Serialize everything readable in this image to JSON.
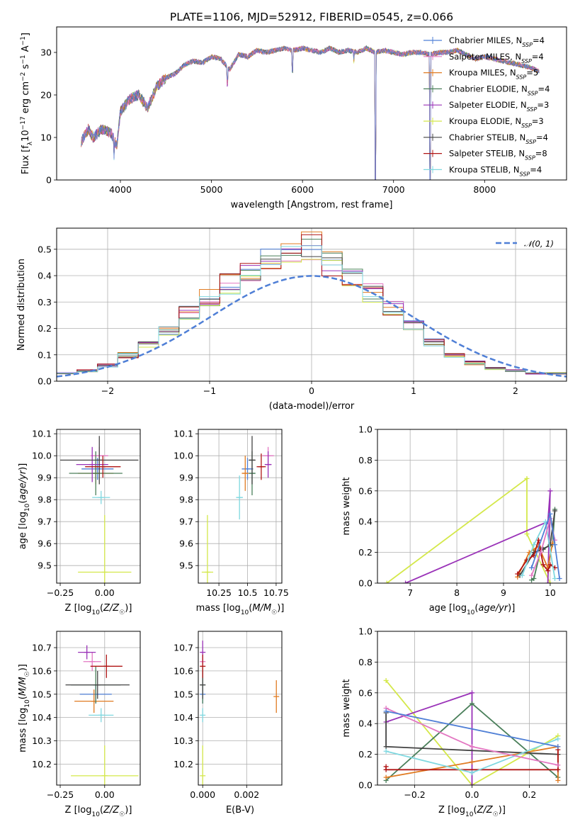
{
  "figure_title": "PLATE=1106, MJD=52912, FIBERID=0545, z=0.066",
  "colors": {
    "chabrier_miles": "#4f7fd6",
    "salpeter_miles": "#e377c2",
    "kroupa_miles": "#e07b22",
    "chabrier_elodie": "#4a7f5a",
    "salpeter_elodie": "#9a32b8",
    "kroupa_elodie": "#d4e84a",
    "chabrier_stelib": "#444444",
    "salpeter_stelib": "#b01515",
    "kroupa_stelib": "#7fd8e0"
  },
  "chart_data": [
    {
      "id": "spectrum",
      "type": "line",
      "xlabel": "wavelength [Angstrom, rest frame]",
      "ylabel": "Flux [f_λ 10^-17 erg cm^-2 s^-1 A^-1]",
      "xlim": [
        3300,
        8900
      ],
      "ylim": [
        0,
        36
      ],
      "xticks": [
        4000,
        5000,
        6000,
        7000,
        8000
      ],
      "yticks": [
        0,
        10,
        20,
        30
      ],
      "grid": false,
      "legend_position": "right",
      "legend": [
        {
          "label": "Chabrier MILES, N_SSP=4",
          "color": "#4f7fd6"
        },
        {
          "label": "Salpeter MILES, N_SSP=4",
          "color": "#e377c2"
        },
        {
          "label": "Kroupa MILES, N_SSP=5",
          "color": "#e07b22"
        },
        {
          "label": "Chabrier ELODIE, N_SSP=4",
          "color": "#4a7f5a"
        },
        {
          "label": "Salpeter ELODIE, N_SSP=3",
          "color": "#9a32b8"
        },
        {
          "label": "Kroupa ELODIE, N_SSP=3",
          "color": "#d4e84a"
        },
        {
          "label": "Chabrier STELIB, N_SSP=4",
          "color": "#444444"
        },
        {
          "label": "Salpeter STELIB, N_SSP=8",
          "color": "#b01515"
        },
        {
          "label": "Kroupa STELIB, N_SSP=4",
          "color": "#7fd8e0"
        }
      ],
      "spectrum_wavelength": [
        3570,
        3650,
        3700,
        3800,
        3900,
        3960,
        4000,
        4100,
        4200,
        4300,
        4400,
        4500,
        4600,
        4700,
        4800,
        4900,
        5000,
        5100,
        5200,
        5300,
        5400,
        5500,
        5600,
        5700,
        5800,
        5900,
        6000,
        6100,
        6200,
        6300,
        6400,
        6500,
        6600,
        6700,
        6800,
        6900,
        7000,
        7100,
        7200,
        7300,
        7400,
        7500,
        7600,
        7700,
        7800,
        7900,
        8000,
        8100,
        8200,
        8300,
        8400,
        8500,
        8600
      ],
      "spectrum_flux": [
        9,
        12,
        10,
        12,
        11,
        8,
        16,
        19,
        20,
        17,
        22,
        24,
        25,
        27,
        28,
        27.5,
        29,
        28.5,
        26,
        29.5,
        29,
        30.5,
        30,
        30.5,
        31,
        30.5,
        31,
        30.5,
        30,
        31,
        30,
        30.5,
        30,
        31,
        30,
        30.5,
        30,
        29.5,
        30,
        30,
        29.5,
        30,
        30,
        30.5,
        29.5,
        28.5,
        29,
        28.5,
        28,
        27.5,
        27,
        26.5,
        25.5
      ],
      "flux_dips": [
        [
          3930,
          4
        ],
        [
          4300,
          16
        ],
        [
          5175,
          22
        ],
        [
          5890,
          25
        ],
        [
          6563,
          27
        ],
        [
          6800,
          0
        ],
        [
          7400,
          0
        ]
      ]
    },
    {
      "id": "residuals",
      "type": "step",
      "xlabel": "(data-model)/error",
      "ylabel": "Normed distribution",
      "xlim": [
        -2.5,
        2.5
      ],
      "ylim": [
        0,
        0.58
      ],
      "xticks": [
        -2,
        -1,
        0,
        1,
        2
      ],
      "xtick_labels": [
        "−2",
        "−1",
        "0",
        "1",
        "2"
      ],
      "yticks": [
        0.0,
        0.1,
        0.2,
        0.3,
        0.4,
        0.5
      ],
      "grid": true,
      "legend_position": "top-right",
      "legend": [
        {
          "label": "𝒩(0, 1)",
          "color": "#4f7fd6",
          "style": "dashed"
        }
      ],
      "bin_edges": [
        -2.5,
        -2.3,
        -2.1,
        -1.9,
        -1.7,
        -1.5,
        -1.3,
        -1.1,
        -0.9,
        -0.7,
        -0.5,
        -0.3,
        -0.1,
        0.1,
        0.3,
        0.5,
        0.7,
        0.9,
        1.1,
        1.3,
        1.5,
        1.7,
        1.9,
        2.1,
        2.3,
        2.5
      ],
      "histogram_envelope": [
        0.03,
        0.04,
        0.06,
        0.1,
        0.14,
        0.19,
        0.26,
        0.32,
        0.37,
        0.43,
        0.46,
        0.48,
        0.52,
        0.45,
        0.4,
        0.34,
        0.28,
        0.22,
        0.15,
        0.1,
        0.07,
        0.05,
        0.04,
        0.03,
        0.03
      ]
    },
    {
      "id": "age_vs_Z",
      "type": "scatter",
      "xlabel": "Z [log10(Z/Z☉)]",
      "ylabel": "age [log10(age/yr)]",
      "xlim": [
        -0.27,
        0.2
      ],
      "ylim": [
        9.42,
        10.12
      ],
      "xticks": [
        -0.25,
        0.0
      ],
      "xtick_labels": [
        "−0.25",
        "0.00"
      ],
      "yticks": [
        9.5,
        9.6,
        9.7,
        9.8,
        9.9,
        10.0,
        10.1
      ],
      "grid": true,
      "points": [
        {
          "x": -0.04,
          "y": 9.94,
          "xerr": 0.09,
          "yerr": 0.05,
          "color": "#4f7fd6"
        },
        {
          "x": -0.03,
          "y": 10.0,
          "xerr": 0.05,
          "yerr": 0.04,
          "color": "#e377c2"
        },
        {
          "x": -0.05,
          "y": 9.92,
          "xerr": 0.1,
          "yerr": 0.05,
          "color": "#e07b22"
        },
        {
          "x": -0.05,
          "y": 9.92,
          "xerr": 0.15,
          "yerr": 0.1,
          "color": "#4a7f5a"
        },
        {
          "x": -0.07,
          "y": 9.96,
          "xerr": 0.09,
          "yerr": 0.08,
          "color": "#9a32b8"
        },
        {
          "x": 0.0,
          "y": 9.47,
          "xerr": 0.15,
          "yerr": 0.26,
          "color": "#d4e84a"
        },
        {
          "x": -0.03,
          "y": 9.98,
          "xerr": 0.22,
          "yerr": 0.11,
          "color": "#444444"
        },
        {
          "x": -0.01,
          "y": 9.95,
          "xerr": 0.1,
          "yerr": 0.05,
          "color": "#b01515"
        },
        {
          "x": -0.02,
          "y": 9.81,
          "xerr": 0.05,
          "yerr": 0.03,
          "color": "#7fd8e0"
        }
      ]
    },
    {
      "id": "age_vs_mass",
      "type": "scatter",
      "xlabel": "mass [log10(M/M☉)]",
      "ylabel": "",
      "xlim": [
        10.07,
        10.8
      ],
      "ylim": [
        9.42,
        10.12
      ],
      "xticks": [
        10.25,
        10.5,
        10.75
      ],
      "yticks": [
        9.5,
        9.6,
        9.7,
        9.8,
        9.9,
        10.0,
        10.1
      ],
      "grid": true,
      "points": [
        {
          "x": 10.5,
          "y": 9.94,
          "xerr": 0.05,
          "yerr": 0.05,
          "color": "#4f7fd6"
        },
        {
          "x": 10.68,
          "y": 10.0,
          "xerr": 0.05,
          "yerr": 0.04,
          "color": "#e377c2"
        },
        {
          "x": 10.48,
          "y": 9.92,
          "xerr": 0.03,
          "yerr": 0.08,
          "color": "#e07b22"
        },
        {
          "x": 10.54,
          "y": 9.92,
          "xerr": 0.03,
          "yerr": 0.1,
          "color": "#4a7f5a"
        },
        {
          "x": 10.68,
          "y": 9.96,
          "xerr": 0.03,
          "yerr": 0.06,
          "color": "#9a32b8"
        },
        {
          "x": 10.15,
          "y": 9.47,
          "xerr": 0.05,
          "yerr": 0.26,
          "color": "#d4e84a"
        },
        {
          "x": 10.54,
          "y": 9.98,
          "xerr": 0.03,
          "yerr": 0.11,
          "color": "#444444"
        },
        {
          "x": 10.62,
          "y": 9.95,
          "xerr": 0.04,
          "yerr": 0.06,
          "color": "#b01515"
        },
        {
          "x": 10.43,
          "y": 9.81,
          "xerr": 0.03,
          "yerr": 0.1,
          "color": "#7fd8e0"
        }
      ]
    },
    {
      "id": "weight_vs_age",
      "type": "line",
      "xlabel": "age [log10(age/yr)]",
      "ylabel": "mass weight",
      "xlim": [
        6.3,
        10.35
      ],
      "ylim": [
        0,
        1
      ],
      "xticks": [
        7,
        8,
        9,
        10
      ],
      "yticks": [
        0.0,
        0.2,
        0.4,
        0.6,
        0.8,
        1.0
      ],
      "grid": true,
      "series": [
        {
          "color": "#d4e84a",
          "x": [
            6.5,
            9.5,
            9.5,
            10.0
          ],
          "y": [
            0.0,
            0.68,
            0.32,
            0.0
          ]
        },
        {
          "color": "#9a32b8",
          "x": [
            6.9,
            9.95,
            10.0,
            9.95
          ],
          "y": [
            0.0,
            0.4,
            0.6,
            0.0
          ]
        },
        {
          "color": "#4a7f5a",
          "x": [
            9.6,
            9.65,
            9.8,
            10.05,
            10.1
          ],
          "y": [
            0.02,
            0.03,
            0.22,
            0.25,
            0.48
          ]
        },
        {
          "color": "#e07b22",
          "x": [
            9.3,
            9.55,
            9.75,
            9.95,
            10.05
          ],
          "y": [
            0.04,
            0.2,
            0.24,
            0.1,
            0.26
          ]
        },
        {
          "color": "#444444",
          "x": [
            9.35,
            9.65,
            9.85,
            10.0,
            10.1
          ],
          "y": [
            0.05,
            0.2,
            0.22,
            0.25,
            0.47
          ]
        },
        {
          "color": "#b01515",
          "x": [
            9.3,
            9.5,
            9.65,
            9.75,
            9.85,
            9.95,
            10.0,
            10.1
          ],
          "y": [
            0.06,
            0.15,
            0.18,
            0.28,
            0.12,
            0.08,
            0.12,
            0.1
          ]
        },
        {
          "color": "#7fd8e0",
          "x": [
            9.4,
            9.65,
            9.9,
            10.1
          ],
          "y": [
            0.05,
            0.25,
            0.4,
            0.03
          ]
        },
        {
          "color": "#e377c2",
          "x": [
            9.6,
            9.8,
            10.0,
            10.1
          ],
          "y": [
            0.05,
            0.2,
            0.42,
            0.28
          ]
        },
        {
          "color": "#4f7fd6",
          "x": [
            9.6,
            10.0,
            10.1,
            10.2
          ],
          "y": [
            0.1,
            0.45,
            0.25,
            0.03
          ]
        }
      ]
    },
    {
      "id": "mass_vs_Z",
      "type": "scatter",
      "xlabel": "Z [log10(Z/Z☉)]",
      "ylabel": "mass [log10(M/M☉)]",
      "xlim": [
        -0.27,
        0.2
      ],
      "ylim": [
        10.11,
        10.77
      ],
      "xticks": [
        -0.25,
        0.0
      ],
      "xtick_labels": [
        "−0.25",
        "0.00"
      ],
      "yticks": [
        10.2,
        10.3,
        10.4,
        10.5,
        10.6,
        10.7
      ],
      "grid": true,
      "points": [
        {
          "x": -0.05,
          "y": 10.5,
          "xerr": 0.09,
          "yerr": 0.04,
          "color": "#4f7fd6"
        },
        {
          "x": -0.07,
          "y": 10.64,
          "xerr": 0.05,
          "yerr": 0.04,
          "color": "#e377c2"
        },
        {
          "x": -0.06,
          "y": 10.47,
          "xerr": 0.11,
          "yerr": 0.05,
          "color": "#e07b22"
        },
        {
          "x": -0.05,
          "y": 10.54,
          "xerr": 0.14,
          "yerr": 0.08,
          "color": "#4a7f5a"
        },
        {
          "x": -0.1,
          "y": 10.68,
          "xerr": 0.05,
          "yerr": 0.03,
          "color": "#9a32b8"
        },
        {
          "x": 0.0,
          "y": 10.15,
          "xerr": 0.19,
          "yerr": 0.13,
          "color": "#d4e84a"
        },
        {
          "x": -0.04,
          "y": 10.54,
          "xerr": 0.18,
          "yerr": 0.06,
          "color": "#444444"
        },
        {
          "x": 0.01,
          "y": 10.62,
          "xerr": 0.09,
          "yerr": 0.05,
          "color": "#b01515"
        },
        {
          "x": -0.02,
          "y": 10.41,
          "xerr": 0.07,
          "yerr": 0.03,
          "color": "#7fd8e0"
        }
      ]
    },
    {
      "id": "mass_vs_ebv",
      "type": "scatter",
      "xlabel": "E(B-V)",
      "ylabel": "",
      "xlim": [
        -0.0002,
        0.0036
      ],
      "ylim": [
        10.11,
        10.77
      ],
      "xticks": [
        0.0,
        0.002
      ],
      "xtick_labels": [
        "0.000",
        "0.002"
      ],
      "yticks": [
        10.2,
        10.3,
        10.4,
        10.5,
        10.6,
        10.7
      ],
      "grid": true,
      "points": [
        {
          "x": 0.0,
          "y": 10.5,
          "xerr": 0,
          "yerr": 0.04,
          "color": "#4f7fd6"
        },
        {
          "x": 0.0,
          "y": 10.64,
          "xerr": 0,
          "yerr": 0.04,
          "color": "#e377c2"
        },
        {
          "x": 0.00335,
          "y": 10.49,
          "xerr": 0,
          "yerr": 0.07,
          "color": "#e07b22"
        },
        {
          "x": 0.0,
          "y": 10.54,
          "xerr": 0,
          "yerr": 0.08,
          "color": "#4a7f5a"
        },
        {
          "x": 0.0,
          "y": 10.68,
          "xerr": 0,
          "yerr": 0.05,
          "color": "#9a32b8"
        },
        {
          "x": 0.0,
          "y": 10.15,
          "xerr": 0,
          "yerr": 0.13,
          "color": "#d4e84a"
        },
        {
          "x": 0.0,
          "y": 10.54,
          "xerr": 0,
          "yerr": 0.06,
          "color": "#444444"
        },
        {
          "x": 0.0,
          "y": 10.62,
          "xerr": 0,
          "yerr": 0.05,
          "color": "#b01515"
        },
        {
          "x": 0.0,
          "y": 10.41,
          "xerr": 0,
          "yerr": 0.03,
          "color": "#7fd8e0"
        }
      ]
    },
    {
      "id": "weight_vs_Z",
      "type": "line",
      "xlabel": "Z [log10(Z/Z☉)]",
      "ylabel": "mass weight",
      "xlim": [
        -0.33,
        0.33
      ],
      "ylim": [
        0,
        1
      ],
      "xticks": [
        -0.2,
        0.0,
        0.2
      ],
      "xtick_labels": [
        "−0.2",
        "0.0",
        "0.2"
      ],
      "yticks": [
        0.0,
        0.2,
        0.4,
        0.6,
        0.8,
        1.0
      ],
      "grid": true,
      "series": [
        {
          "color": "#d4e84a",
          "x": [
            -0.3,
            0.0,
            0.3
          ],
          "y": [
            0.68,
            0.0,
            0.32
          ]
        },
        {
          "color": "#9a32b8",
          "x": [
            -0.3,
            0.0,
            0.0
          ],
          "y": [
            0.41,
            0.6,
            0.0
          ]
        },
        {
          "color": "#4a7f5a",
          "x": [
            -0.3,
            0.0,
            0.3,
            0.3
          ],
          "y": [
            0.03,
            0.53,
            0.05,
            0.2
          ]
        },
        {
          "color": "#e07b22",
          "x": [
            -0.3,
            0.0,
            0.3,
            0.3
          ],
          "y": [
            0.05,
            0.15,
            0.25,
            0.03
          ]
        },
        {
          "color": "#444444",
          "x": [
            -0.3,
            -0.3,
            0.3
          ],
          "y": [
            0.47,
            0.25,
            0.2
          ]
        },
        {
          "color": "#b01515",
          "x": [
            -0.3,
            -0.3,
            0.3,
            0.3
          ],
          "y": [
            0.12,
            0.1,
            0.1,
            0.23
          ]
        },
        {
          "color": "#7fd8e0",
          "x": [
            -0.3,
            0.0,
            0.3
          ],
          "y": [
            0.22,
            0.08,
            0.3
          ]
        },
        {
          "color": "#e377c2",
          "x": [
            -0.3,
            0.0,
            0.3
          ],
          "y": [
            0.5,
            0.25,
            0.13
          ]
        },
        {
          "color": "#4f7fd6",
          "x": [
            -0.3,
            0.3
          ],
          "y": [
            0.48,
            0.25
          ]
        }
      ]
    }
  ]
}
